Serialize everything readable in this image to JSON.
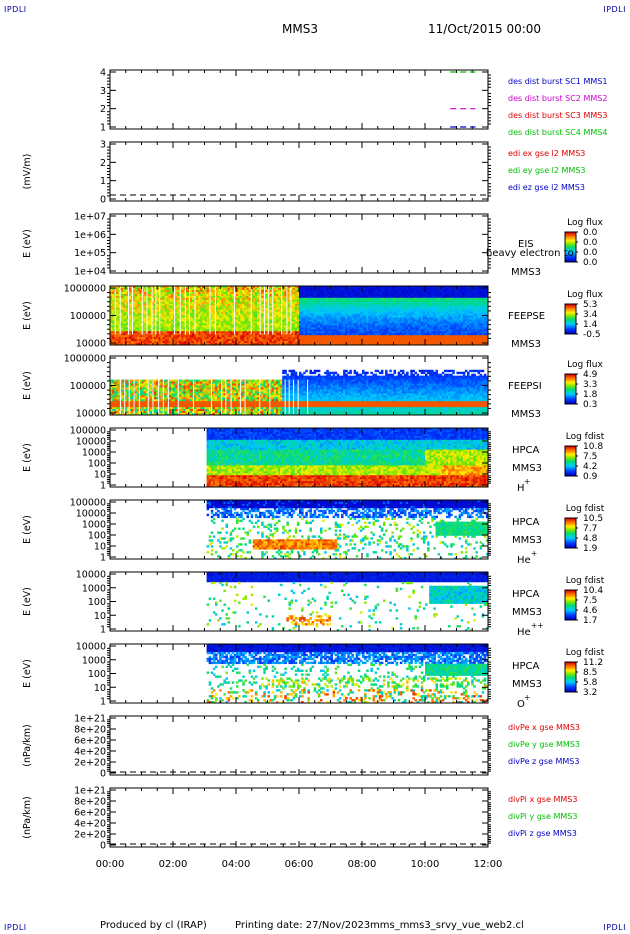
{
  "corner_label": "IPDLI",
  "header": {
    "spacecraft": "MMS3",
    "datetime": "11/Oct/2015 00:00"
  },
  "footer": {
    "producer": "Produced by cl (IRAP)",
    "printing": "Printing date: 27/Nov/2023",
    "script": "mms_mms3_srvy_vue_web2.cl"
  },
  "colors": {
    "blue": "#0000c8",
    "magenta": "#d000d0",
    "red": "#e00000",
    "green": "#00c000"
  },
  "panels": [
    {
      "id": "dist",
      "ylabel": "",
      "yticks": [
        "4",
        "3",
        "2",
        "1"
      ],
      "legend": [
        {
          "text": "des dist burst SC1 MMS1",
          "color": "#0000c8"
        },
        {
          "text": "des dist burst SC2 MMS2",
          "color": "#d000d0"
        },
        {
          "text": "des dist burst SC3 MMS3",
          "color": "#e00000"
        },
        {
          "text": "des dist burst SC4 MMS4",
          "color": "#00c000"
        }
      ]
    },
    {
      "id": "edi",
      "ylabel": "(mV/m)",
      "yticks": [
        "3",
        "2",
        "1",
        "0"
      ],
      "legend": [
        {
          "text": "edi ex gse l2 MMS3",
          "color": "#e00000"
        },
        {
          "text": "edi ey gse l2 MMS3",
          "color": "#00c000"
        },
        {
          "text": "edi ez gse l2 MMS3",
          "color": "#0000c8"
        }
      ]
    },
    {
      "id": "eis",
      "ylabel": "E (eV)",
      "yticks": [
        "1e+07",
        "1e+06",
        "1e+05",
        "1e+04"
      ],
      "labels": [
        "EIS",
        "heavy electron to",
        "MMS3"
      ],
      "cbar_title": "Log flux",
      "cbar_ticks": [
        "0.0",
        "0.0",
        "0.0",
        "0.0"
      ]
    },
    {
      "id": "feepse",
      "ylabel": "E (eV)",
      "yticks": [
        "1000000",
        "100000",
        "10000"
      ],
      "labels": [
        "FEEPSE",
        "MMS3"
      ],
      "cbar_title": "Log flux",
      "cbar_ticks": [
        "5.3",
        "3.4",
        "1.4",
        "-0.5"
      ]
    },
    {
      "id": "feepsi",
      "ylabel": "E (eV)",
      "yticks": [
        "1000000",
        "100000",
        "10000"
      ],
      "labels": [
        "FEEPSI",
        "MMS3"
      ],
      "cbar_title": "Log flux",
      "cbar_ticks": [
        "4.9",
        "3.3",
        "1.8",
        "0.3"
      ]
    },
    {
      "id": "hpca_h",
      "ylabel": "E (eV)",
      "yticks": [
        "100000",
        "10000",
        "1000",
        "100",
        "10",
        "1"
      ],
      "labels": [
        "HPCA",
        "MMS3",
        "H",
        "+"
      ],
      "cbar_title": "Log fdist",
      "cbar_ticks": [
        "10.8",
        "7.5",
        "4.2",
        "0.9"
      ]
    },
    {
      "id": "hpca_he",
      "ylabel": "E (eV)",
      "yticks": [
        "100000",
        "10000",
        "1000",
        "100",
        "10",
        "1"
      ],
      "labels": [
        "HPCA",
        "MMS3",
        "He",
        "+"
      ],
      "cbar_title": "Log fdist",
      "cbar_ticks": [
        "10.5",
        "7.7",
        "4.8",
        "1.9"
      ]
    },
    {
      "id": "hpca_hepp",
      "ylabel": "E (eV)",
      "yticks": [
        "10000",
        "1000",
        "100",
        "10",
        "1"
      ],
      "labels": [
        "HPCA",
        "MMS3",
        "He",
        "++"
      ],
      "cbar_title": "Log fdist",
      "cbar_ticks": [
        "10.4",
        "7.5",
        "4.6",
        "1.7"
      ]
    },
    {
      "id": "hpca_o",
      "ylabel": "E (eV)",
      "yticks": [
        "10000",
        "1000",
        "100",
        "10",
        "1"
      ],
      "labels": [
        "HPCA",
        "MMS3",
        "O",
        "+"
      ],
      "cbar_title": "Log fdist",
      "cbar_ticks": [
        "11.2",
        "8.5",
        "5.8",
        "3.2"
      ]
    },
    {
      "id": "divpe",
      "ylabel": "(nPa/km)",
      "yticks": [
        "1e+21",
        "8e+20",
        "6e+20",
        "4e+20",
        "2e+20",
        "0"
      ],
      "legend": [
        {
          "text": "divPe x gse MMS3",
          "color": "#e00000"
        },
        {
          "text": "divPe y gse MMS3",
          "color": "#00c000"
        },
        {
          "text": "divPe z gse MMS3",
          "color": "#0000c8"
        }
      ]
    },
    {
      "id": "divpi",
      "ylabel": "(nPa/km)",
      "yticks": [
        "1e+21",
        "8e+20",
        "6e+20",
        "4e+20",
        "2e+20",
        "0"
      ],
      "legend": [
        {
          "text": "divPi x gse MMS3",
          "color": "#e00000"
        },
        {
          "text": "divPi y gse MMS3",
          "color": "#00c000"
        },
        {
          "text": "divPi z gse MMS3",
          "color": "#0000c8"
        }
      ]
    }
  ],
  "chart_data": {
    "type": "heatmap",
    "x_axis": {
      "ticks": [
        "00:00",
        "02:00",
        "04:00",
        "06:00",
        "08:00",
        "10:00",
        "12:00"
      ],
      "range_hours": [
        0,
        12
      ]
    },
    "scale": "log",
    "coverage_start_hours": {
      "feepse": 0.0,
      "feepsi": 0.0,
      "hpca_h": 3.1,
      "hpca_he": 3.1,
      "hpca_hepp": 3.1,
      "hpca_o": 3.1
    },
    "dist_bursts": [
      {
        "sc": "MMS4",
        "color": "#00c000",
        "level": 4,
        "x_hours": [
          10.8,
          11.6
        ]
      },
      {
        "sc": "MMS2",
        "color": "#d000d0",
        "level": 2,
        "x_hours": [
          10.8,
          11.6
        ]
      },
      {
        "sc": "MMS1",
        "color": "#0000c8",
        "level": 1,
        "x_hours": [
          10.8,
          11.6
        ]
      }
    ],
    "zero_lines": [
      "edi",
      "divpe",
      "divpi"
    ]
  }
}
